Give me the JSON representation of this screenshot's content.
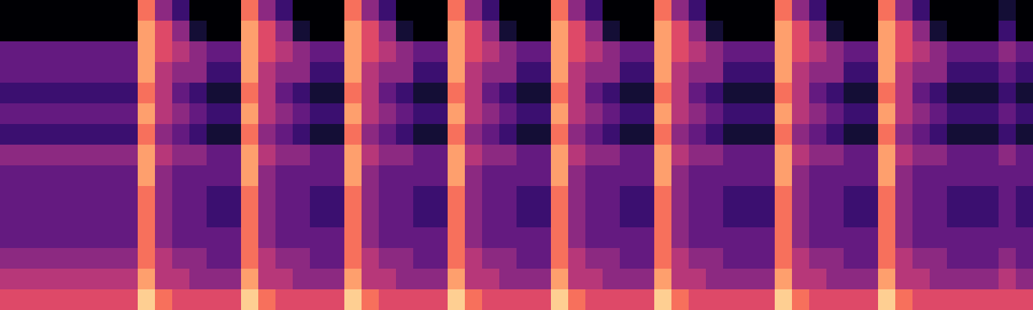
{
  "chart_data": {
    "type": "heatmap",
    "color": "magma",
    "tick_labels": false,
    "zlim": [
      0,
      10
    ],
    "cells": [
      [
        0,
        0,
        0,
        0,
        0,
        0,
        0,
        0,
        7,
        4,
        2,
        0,
        0,
        0,
        7,
        4,
        2,
        0,
        0,
        0,
        7,
        4,
        2,
        0,
        0,
        0,
        7,
        4,
        2,
        0,
        0,
        0,
        7,
        4,
        2,
        0,
        0,
        0,
        7,
        4,
        2,
        0,
        0,
        0,
        0,
        7,
        4,
        2,
        0,
        0,
        0,
        7,
        4,
        2,
        0,
        0,
        0,
        0,
        1,
        0
      ],
      [
        0,
        0,
        0,
        0,
        0,
        0,
        0,
        0,
        8,
        6,
        4,
        1,
        0,
        0,
        8,
        6,
        4,
        1,
        0,
        0,
        8,
        6,
        4,
        1,
        0,
        0,
        8,
        6,
        4,
        1,
        0,
        0,
        8,
        6,
        4,
        1,
        0,
        0,
        8,
        6,
        4,
        1,
        0,
        0,
        0,
        8,
        6,
        4,
        1,
        0,
        0,
        8,
        6,
        4,
        1,
        0,
        0,
        0,
        2,
        0
      ],
      [
        3,
        3,
        3,
        3,
        3,
        3,
        3,
        3,
        8,
        6,
        5,
        4,
        3,
        3,
        8,
        6,
        5,
        4,
        3,
        3,
        8,
        6,
        5,
        4,
        3,
        3,
        8,
        6,
        5,
        4,
        3,
        3,
        8,
        6,
        5,
        4,
        3,
        3,
        8,
        6,
        5,
        4,
        3,
        3,
        3,
        8,
        6,
        5,
        4,
        3,
        3,
        8,
        6,
        5,
        4,
        3,
        3,
        3,
        4,
        3
      ],
      [
        3,
        3,
        3,
        3,
        3,
        3,
        3,
        3,
        8,
        5,
        4,
        4,
        2,
        2,
        8,
        5,
        4,
        4,
        2,
        2,
        8,
        5,
        4,
        4,
        2,
        2,
        8,
        5,
        4,
        4,
        2,
        2,
        8,
        5,
        4,
        4,
        2,
        2,
        8,
        5,
        4,
        4,
        2,
        2,
        2,
        8,
        5,
        4,
        4,
        2,
        2,
        8,
        5,
        4,
        4,
        2,
        2,
        2,
        3,
        2
      ],
      [
        2,
        2,
        2,
        2,
        2,
        2,
        2,
        2,
        7,
        5,
        3,
        2,
        1,
        1,
        7,
        5,
        3,
        2,
        1,
        1,
        7,
        5,
        3,
        2,
        1,
        1,
        7,
        5,
        3,
        2,
        1,
        1,
        7,
        5,
        3,
        2,
        1,
        1,
        7,
        5,
        3,
        2,
        1,
        1,
        1,
        7,
        5,
        3,
        2,
        1,
        1,
        7,
        5,
        3,
        2,
        1,
        1,
        1,
        2,
        1
      ],
      [
        3,
        3,
        3,
        3,
        3,
        3,
        3,
        3,
        8,
        5,
        4,
        3,
        2,
        2,
        8,
        5,
        4,
        3,
        2,
        2,
        8,
        5,
        4,
        3,
        2,
        2,
        8,
        5,
        4,
        3,
        2,
        2,
        8,
        5,
        4,
        3,
        2,
        2,
        8,
        5,
        4,
        3,
        2,
        2,
        2,
        8,
        5,
        4,
        3,
        2,
        2,
        8,
        5,
        4,
        3,
        2,
        2,
        2,
        3,
        2
      ],
      [
        2,
        2,
        2,
        2,
        2,
        2,
        2,
        2,
        7,
        4,
        3,
        2,
        1,
        1,
        7,
        4,
        3,
        2,
        1,
        1,
        7,
        4,
        3,
        2,
        1,
        1,
        7,
        4,
        3,
        2,
        1,
        1,
        7,
        4,
        3,
        2,
        1,
        1,
        7,
        4,
        3,
        2,
        1,
        1,
        1,
        7,
        4,
        3,
        2,
        1,
        1,
        7,
        4,
        3,
        2,
        1,
        1,
        1,
        2,
        1
      ],
      [
        4,
        4,
        4,
        4,
        4,
        4,
        4,
        4,
        8,
        5,
        4,
        4,
        3,
        3,
        8,
        5,
        4,
        4,
        3,
        3,
        8,
        5,
        4,
        4,
        3,
        3,
        8,
        5,
        4,
        4,
        3,
        3,
        8,
        5,
        4,
        4,
        3,
        3,
        8,
        5,
        4,
        4,
        3,
        3,
        3,
        8,
        5,
        4,
        4,
        3,
        3,
        8,
        5,
        4,
        4,
        3,
        3,
        3,
        4,
        3
      ],
      [
        3,
        3,
        3,
        3,
        3,
        3,
        3,
        3,
        8,
        4,
        3,
        3,
        3,
        3,
        8,
        4,
        3,
        3,
        3,
        3,
        8,
        4,
        3,
        3,
        3,
        3,
        8,
        4,
        3,
        3,
        3,
        3,
        8,
        4,
        3,
        3,
        3,
        3,
        8,
        4,
        3,
        3,
        3,
        3,
        3,
        8,
        4,
        3,
        3,
        3,
        3,
        8,
        4,
        3,
        3,
        3,
        3,
        3,
        3,
        3
      ],
      [
        3,
        3,
        3,
        3,
        3,
        3,
        3,
        3,
        7,
        4,
        3,
        3,
        2,
        2,
        7,
        4,
        3,
        3,
        2,
        2,
        7,
        4,
        3,
        3,
        2,
        2,
        7,
        4,
        3,
        3,
        2,
        2,
        7,
        4,
        3,
        3,
        2,
        2,
        7,
        4,
        3,
        3,
        2,
        2,
        2,
        7,
        4,
        3,
        3,
        2,
        2,
        7,
        4,
        3,
        3,
        2,
        2,
        2,
        3,
        2
      ],
      [
        3,
        3,
        3,
        3,
        3,
        3,
        3,
        3,
        7,
        4,
        3,
        3,
        2,
        2,
        7,
        4,
        3,
        3,
        2,
        2,
        7,
        4,
        3,
        3,
        2,
        2,
        7,
        4,
        3,
        3,
        2,
        2,
        7,
        4,
        3,
        3,
        2,
        2,
        7,
        4,
        3,
        3,
        2,
        2,
        2,
        7,
        4,
        3,
        3,
        2,
        2,
        7,
        4,
        3,
        3,
        2,
        2,
        2,
        3,
        2
      ],
      [
        3,
        3,
        3,
        3,
        3,
        3,
        3,
        3,
        7,
        4,
        3,
        3,
        3,
        3,
        7,
        4,
        3,
        3,
        3,
        3,
        7,
        4,
        3,
        3,
        3,
        3,
        7,
        4,
        3,
        3,
        3,
        3,
        7,
        4,
        3,
        3,
        3,
        3,
        7,
        4,
        3,
        3,
        3,
        3,
        3,
        7,
        4,
        3,
        3,
        3,
        3,
        7,
        4,
        3,
        3,
        3,
        3,
        3,
        3,
        3
      ],
      [
        4,
        4,
        4,
        4,
        4,
        4,
        4,
        4,
        7,
        5,
        4,
        4,
        3,
        3,
        7,
        5,
        4,
        4,
        3,
        3,
        7,
        5,
        4,
        4,
        3,
        3,
        7,
        5,
        4,
        4,
        3,
        3,
        7,
        5,
        4,
        4,
        3,
        3,
        7,
        5,
        4,
        4,
        3,
        3,
        3,
        7,
        5,
        4,
        4,
        3,
        3,
        7,
        5,
        4,
        4,
        3,
        3,
        3,
        4,
        3
      ],
      [
        5,
        5,
        5,
        5,
        5,
        5,
        5,
        5,
        8,
        5,
        5,
        4,
        4,
        4,
        8,
        5,
        5,
        4,
        4,
        4,
        8,
        5,
        5,
        4,
        4,
        4,
        8,
        5,
        5,
        4,
        4,
        4,
        8,
        5,
        5,
        4,
        4,
        4,
        8,
        5,
        5,
        4,
        4,
        4,
        4,
        8,
        5,
        5,
        4,
        4,
        4,
        8,
        5,
        5,
        4,
        4,
        4,
        4,
        5,
        4
      ],
      [
        6,
        6,
        6,
        6,
        6,
        6,
        6,
        6,
        9,
        7,
        6,
        6,
        6,
        6,
        9,
        7,
        6,
        6,
        6,
        6,
        9,
        7,
        6,
        6,
        6,
        6,
        9,
        7,
        6,
        6,
        6,
        6,
        9,
        7,
        6,
        6,
        6,
        6,
        9,
        7,
        6,
        6,
        6,
        6,
        6,
        9,
        7,
        6,
        6,
        6,
        6,
        9,
        7,
        6,
        6,
        6,
        6,
        6,
        6,
        6
      ]
    ]
  }
}
